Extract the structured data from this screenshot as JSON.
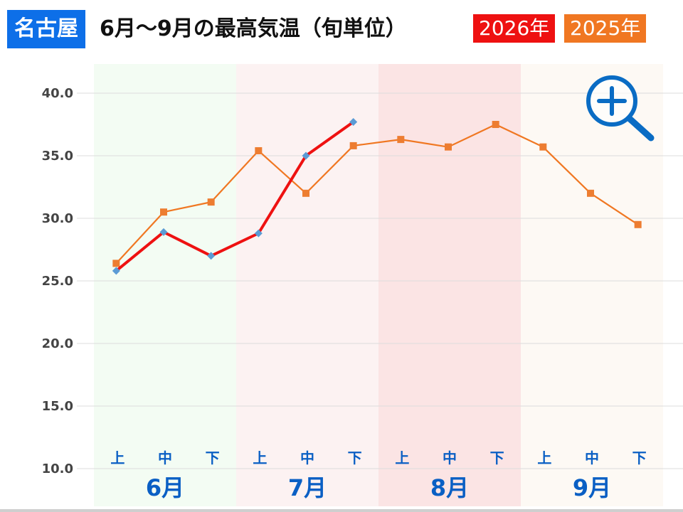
{
  "header": {
    "city": "名古屋",
    "title": "6月～9月の最高気温（旬単位）",
    "legend": [
      {
        "label": "2026年",
        "color": "#ee1111"
      },
      {
        "label": "2025年",
        "color": "#f07722"
      }
    ]
  },
  "zoom_icon": "zoom-in-magnifier-icon",
  "chart_data": {
    "type": "line",
    "title": "6月～9月の最高気温（旬単位）",
    "months": [
      "6月",
      "7月",
      "8月",
      "9月"
    ],
    "month_band_colors": [
      "#f3fcf3",
      "#fcf2f2",
      "#fbe4e4",
      "#fdf9f4"
    ],
    "categories": [
      "上",
      "中",
      "下",
      "上",
      "中",
      "下",
      "上",
      "中",
      "下",
      "上",
      "中",
      "下"
    ],
    "y_ticks": [
      "10.0",
      "15.0",
      "20.0",
      "25.0",
      "30.0",
      "35.0",
      "40.0"
    ],
    "ylim": [
      10,
      40
    ],
    "grid": "horizontal",
    "series": [
      {
        "name": "2026年",
        "color": "#ee1111",
        "marker_color": "#5b9bd5",
        "marker": "diamond",
        "values": [
          25.8,
          28.9,
          27.0,
          28.8,
          35.0,
          37.7,
          null,
          null,
          null,
          null,
          null,
          null
        ]
      },
      {
        "name": "2025年",
        "color": "#f07722",
        "marker_color": "#ed7d31",
        "marker": "square",
        "values": [
          26.4,
          30.5,
          31.3,
          35.4,
          32.0,
          35.8,
          36.3,
          35.7,
          37.5,
          35.7,
          32.0,
          29.5
        ]
      }
    ]
  }
}
